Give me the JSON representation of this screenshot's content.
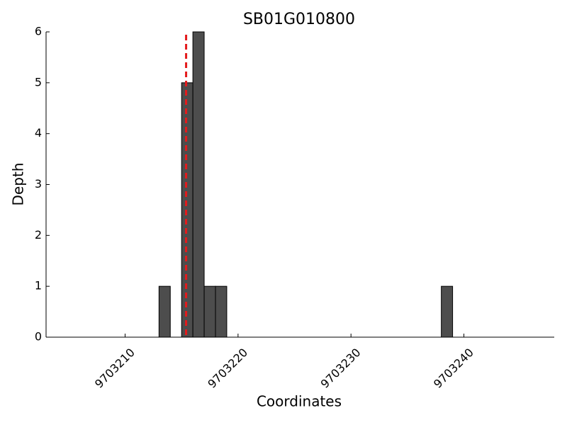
{
  "chart_data": {
    "type": "histogram",
    "title": "SB01G010800",
    "x_label": "Coordinates",
    "y_label": "Depth",
    "bins": [
      9703213,
      9703214,
      9703215,
      9703216,
      9703217,
      9703218,
      9703219,
      9703220,
      9703221,
      9703222,
      9703223,
      9703224,
      9703225,
      9703226,
      9703227,
      9703228,
      9703229,
      9703230,
      9703231,
      9703232,
      9703233,
      9703234,
      9703235,
      9703236,
      9703237,
      9703238,
      9703239
    ],
    "counts": [
      1,
      0,
      5,
      6,
      1,
      1,
      0,
      0,
      0,
      0,
      0,
      0,
      0,
      0,
      0,
      0,
      0,
      0,
      0,
      0,
      0,
      0,
      0,
      0,
      0,
      1
    ],
    "color": "#4d4d4d",
    "marker_x": 9703215.4,
    "marker_color": "#e41a1c",
    "xlim": [
      9703203,
      9703248
    ],
    "xticks": [
      9703210,
      9703220,
      9703230,
      9703240
    ],
    "ylim": [
      0,
      6
    ],
    "yticks": [
      0,
      1,
      2,
      3,
      4,
      5,
      6
    ]
  }
}
